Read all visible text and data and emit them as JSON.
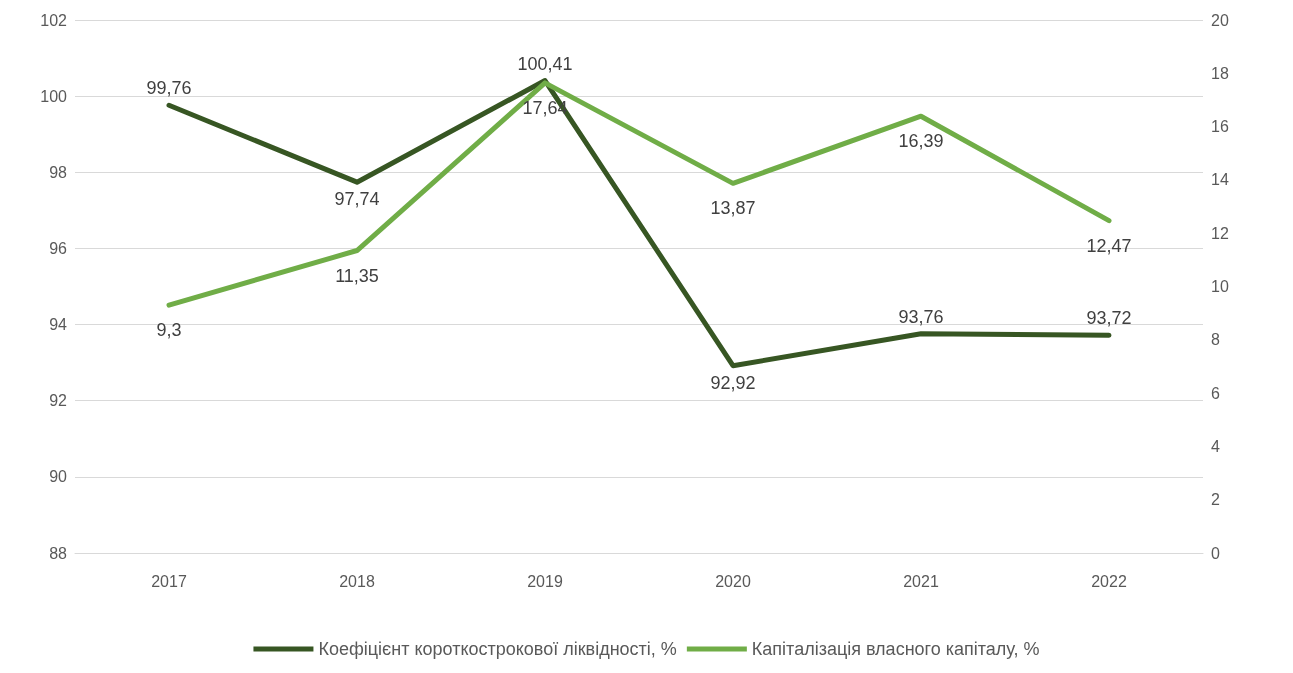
{
  "chart_data": {
    "type": "line",
    "categories": [
      "2017",
      "2018",
      "2019",
      "2020",
      "2021",
      "2022"
    ],
    "series": [
      {
        "name": "Коефіцієнт короткострокової ліквідності, %",
        "color": "#375623",
        "values": [
          99.76,
          97.74,
          100.41,
          92.92,
          93.76,
          93.72
        ],
        "value_labels": [
          "99,76",
          "97,74",
          "100,41",
          "92,92",
          "93,76",
          "93,72"
        ]
      },
      {
        "name": "Капіталізація власного капіталу, %",
        "color": "#70ad47",
        "axis": "y2",
        "values": [
          9.3,
          11.35,
          17.64,
          13.87,
          16.39,
          12.47
        ],
        "value_labels": [
          "9,3",
          "11,35",
          "17,64",
          "13,87",
          "16,39",
          "12,47"
        ]
      }
    ],
    "ylim": [
      88,
      102
    ],
    "yticks": [
      88,
      90,
      92,
      94,
      96,
      98,
      100,
      102
    ],
    "y2lim": [
      0,
      20
    ],
    "y2ticks": [
      0,
      2,
      4,
      6,
      8,
      10,
      12,
      14,
      16,
      18,
      20
    ],
    "grid": "y",
    "legend": "bottom",
    "marker": "none",
    "line_style": "solid"
  }
}
